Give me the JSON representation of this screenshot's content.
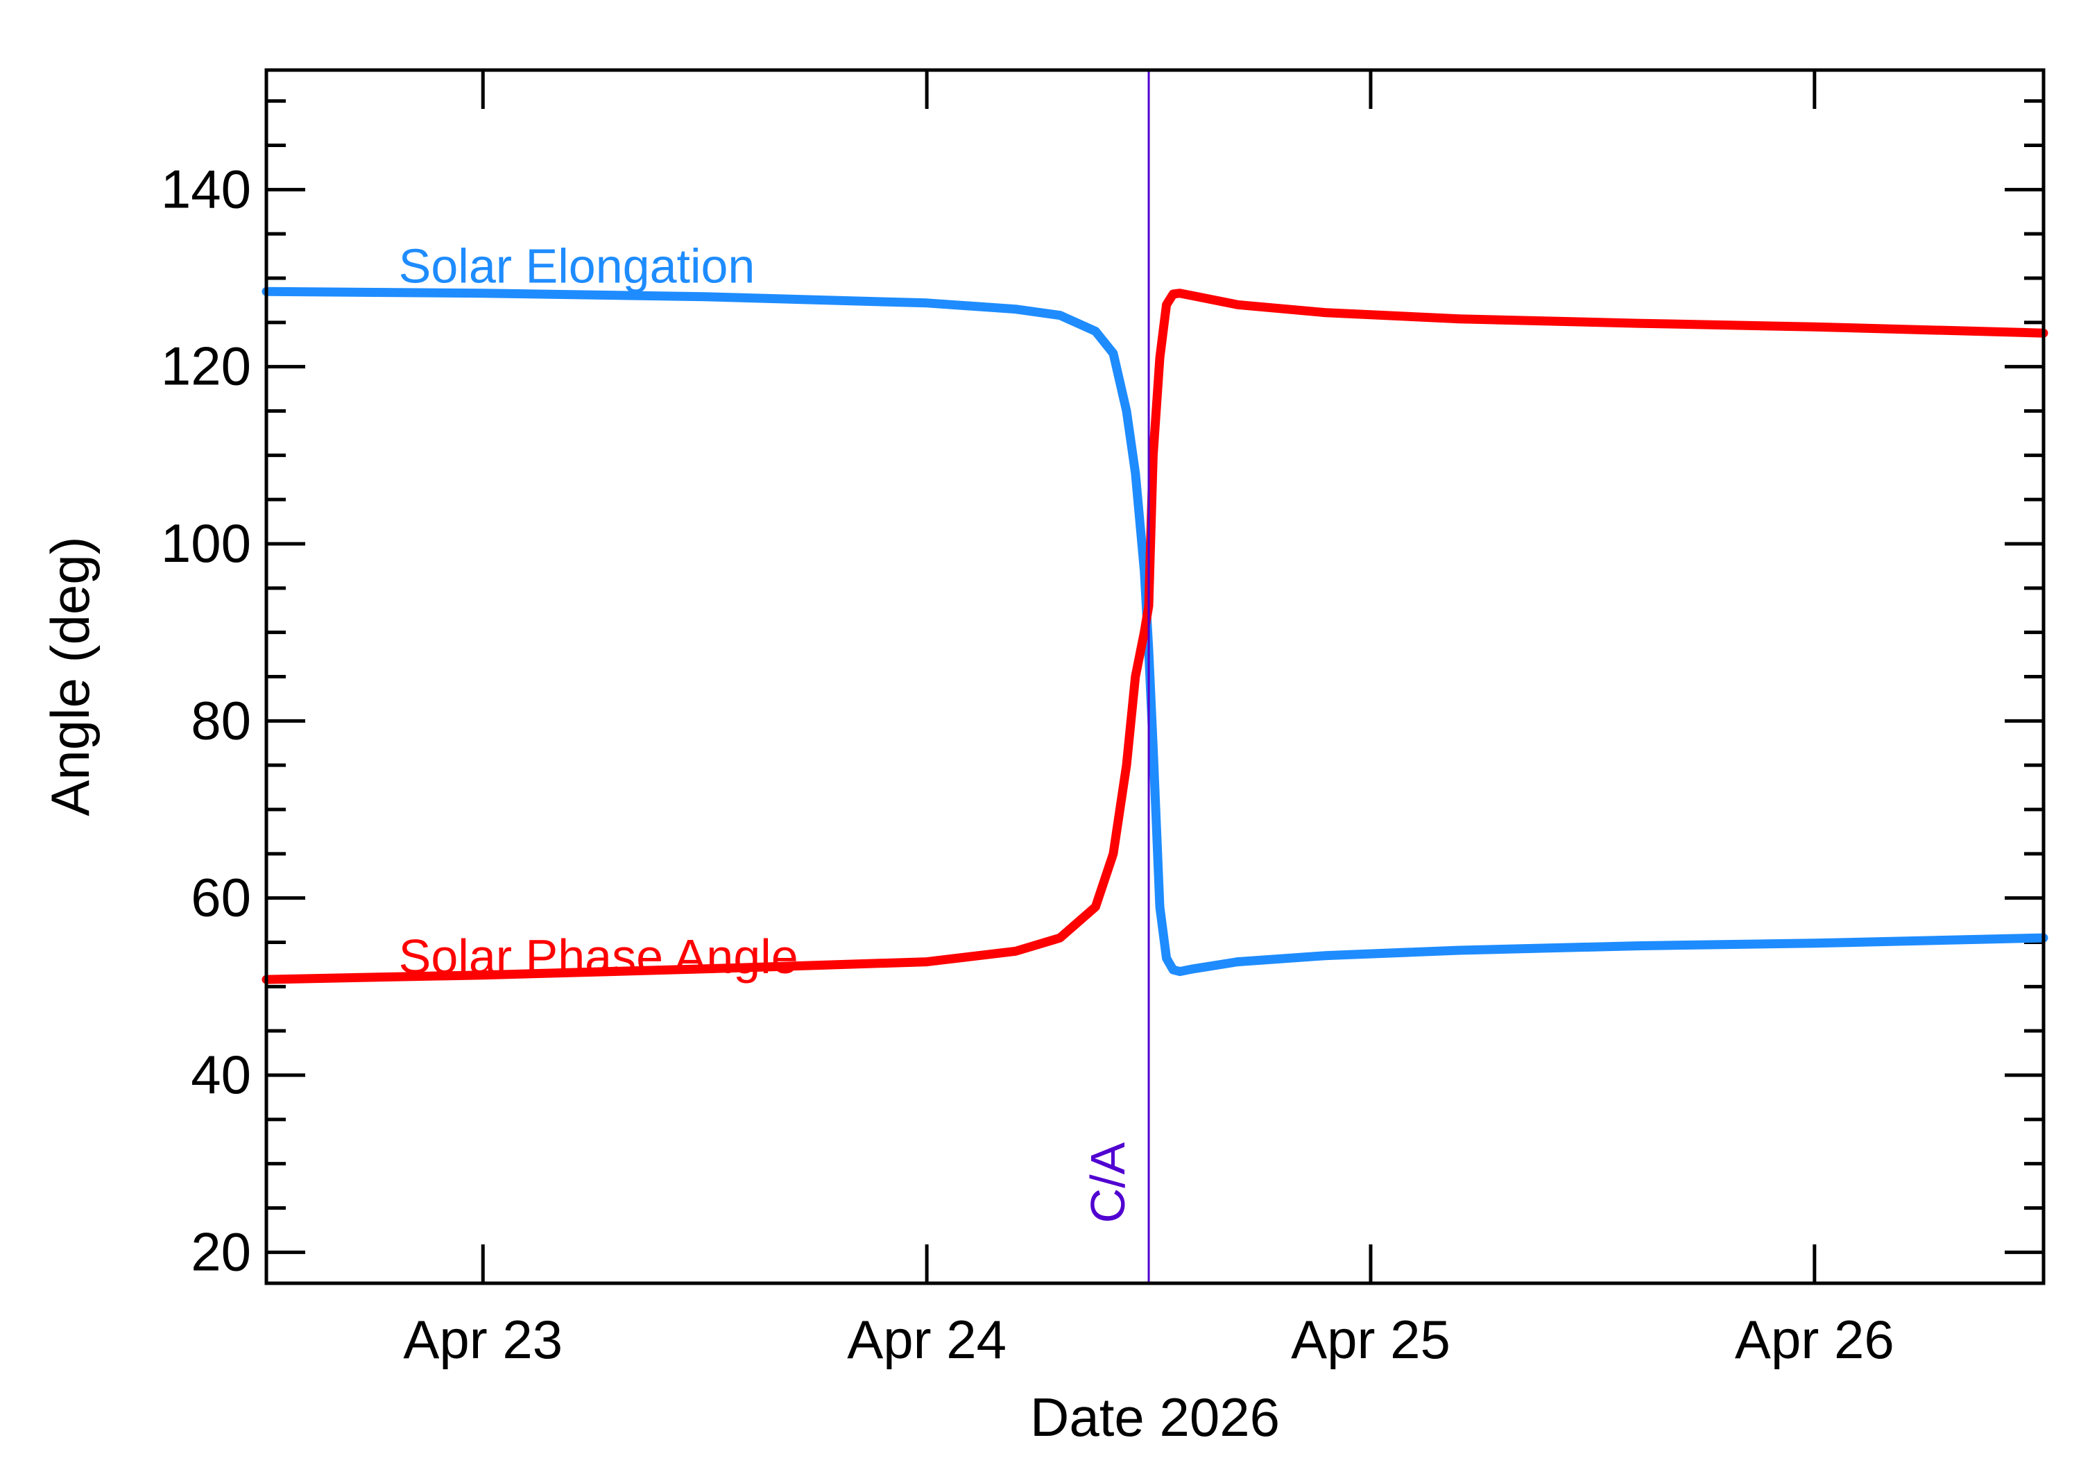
{
  "chart_data": {
    "type": "line",
    "xlabel": "Date 2026",
    "ylabel": "Angle (deg)",
    "x_range_days": [
      -0.488,
      3.516
    ],
    "x_ticks": [
      {
        "label": "Apr 23",
        "day": 0
      },
      {
        "label": "Apr 24",
        "day": 1
      },
      {
        "label": "Apr 25",
        "day": 2
      },
      {
        "label": "Apr 26",
        "day": 3
      }
    ],
    "ylim": [
      16.5,
      153.5
    ],
    "y_ticks": [
      20,
      40,
      60,
      80,
      100,
      120,
      140
    ],
    "y_minor_step": 5,
    "grid": false,
    "closest_approach": {
      "label": "C/A",
      "day": 1.5,
      "color": "#5000d0"
    },
    "series": [
      {
        "name": "Solar Elongation",
        "color": "#1e8cff",
        "label_anchor": {
          "day": -0.19,
          "angle": 129.5
        },
        "x": [
          -0.488,
          0.0,
          0.5,
          1.0,
          1.2,
          1.3,
          1.38,
          1.42,
          1.45,
          1.47,
          1.49,
          1.5,
          1.51,
          1.525,
          1.54,
          1.555,
          1.57,
          1.6,
          1.7,
          1.9,
          2.2,
          2.6,
          3.0,
          3.516
        ],
        "y": [
          128.5,
          128.3,
          127.9,
          127.2,
          126.5,
          125.8,
          124.0,
          121.5,
          115.0,
          108.0,
          97.0,
          88.0,
          77.0,
          59.0,
          53.2,
          51.9,
          51.7,
          52.0,
          52.8,
          53.5,
          54.1,
          54.6,
          54.9,
          55.5
        ]
      },
      {
        "name": "Solar Phase Angle",
        "color": "#ff0000",
        "label_anchor": {
          "day": -0.19,
          "angle": 51.5
        },
        "x": [
          -0.488,
          0.0,
          0.5,
          1.0,
          1.2,
          1.3,
          1.38,
          1.42,
          1.45,
          1.47,
          1.49,
          1.5,
          1.51,
          1.525,
          1.54,
          1.555,
          1.57,
          1.6,
          1.7,
          1.9,
          2.2,
          2.6,
          3.0,
          3.516
        ],
        "y": [
          50.8,
          51.3,
          52.0,
          52.8,
          54.0,
          55.5,
          59.0,
          65.0,
          75.0,
          85.0,
          90.0,
          93.0,
          110.0,
          121.0,
          127.0,
          128.2,
          128.3,
          128.0,
          127.0,
          126.1,
          125.4,
          124.9,
          124.5,
          123.8
        ]
      }
    ]
  }
}
